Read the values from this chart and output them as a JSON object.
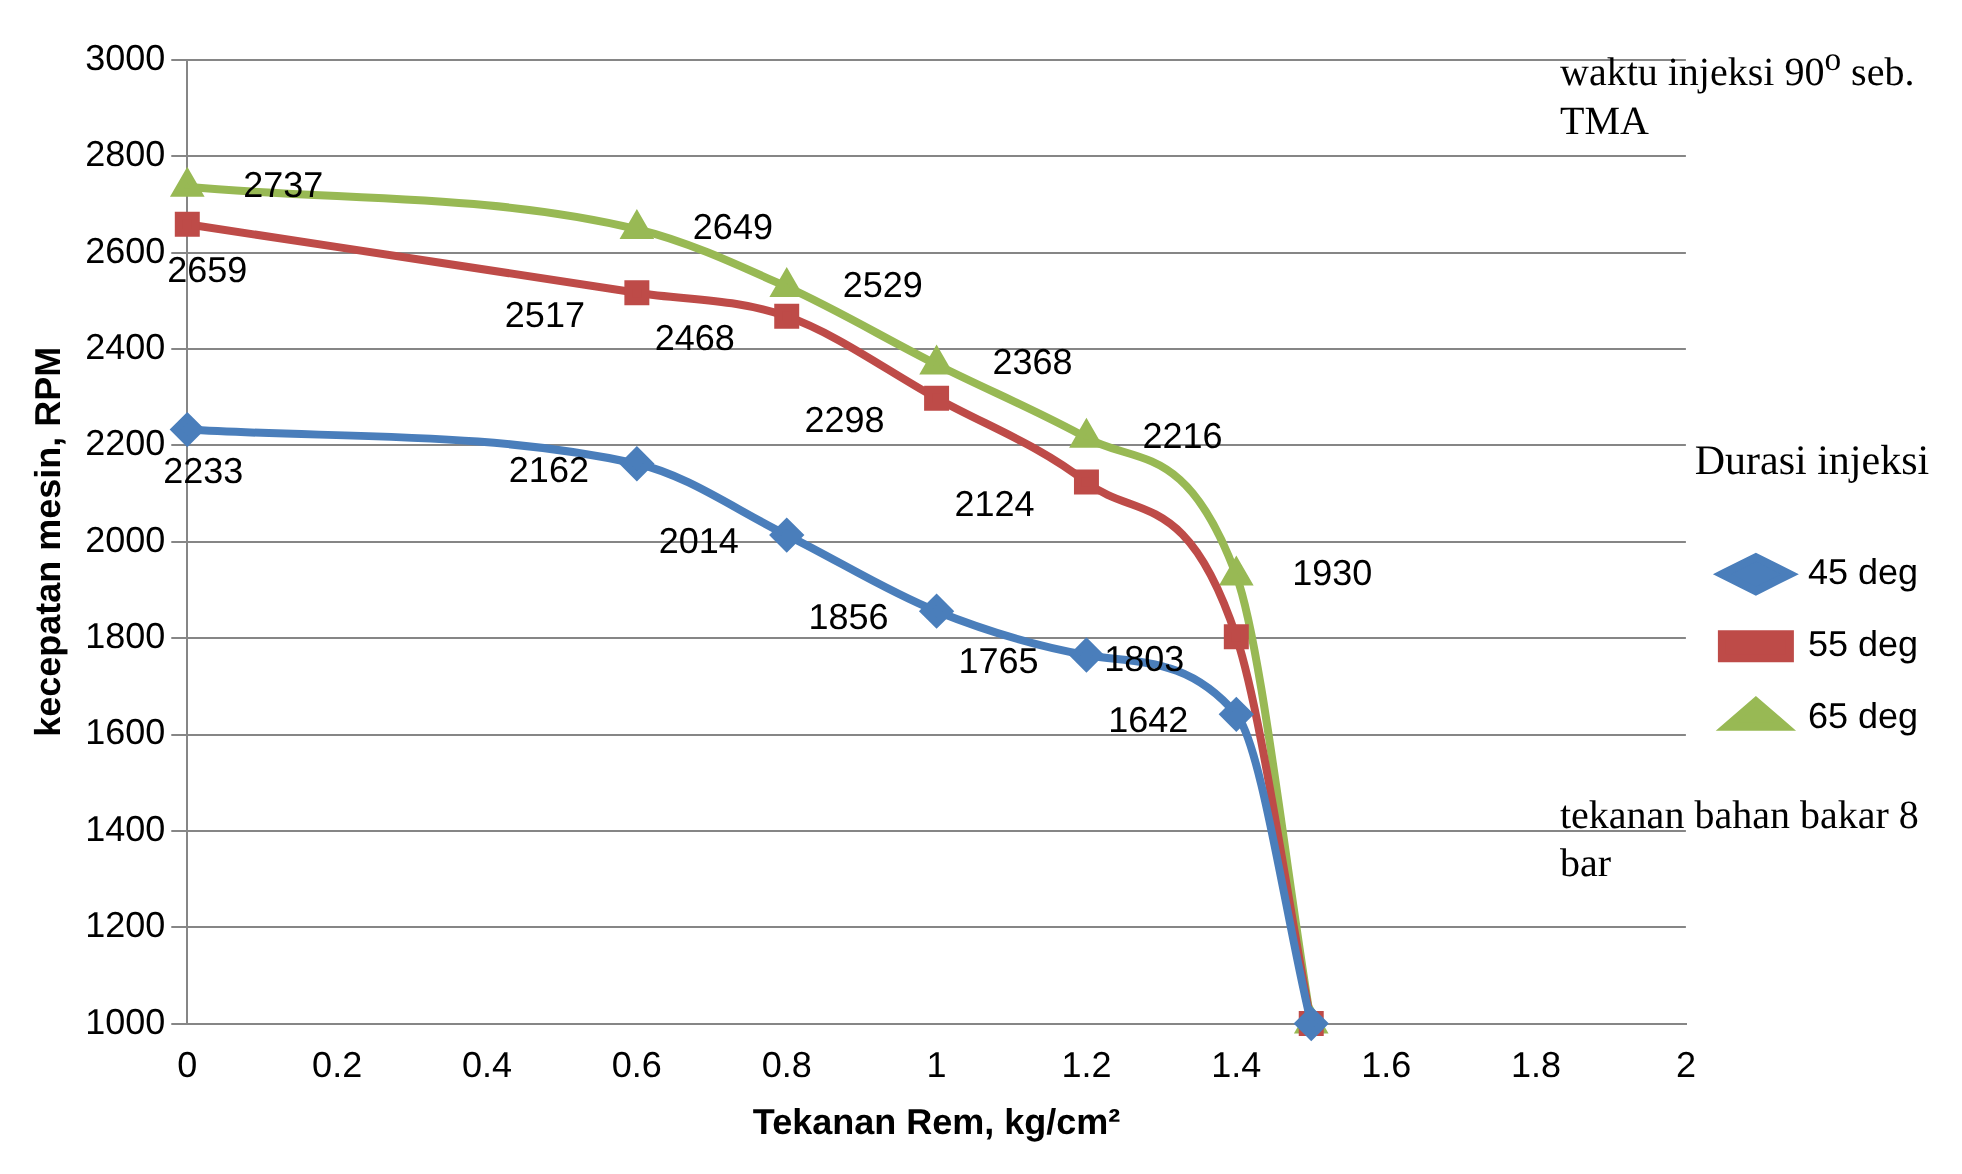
{
  "chart_data": {
    "type": "line",
    "xlabel": "Tekanan Rem, kg/cm²",
    "ylabel": "kecepatan mesin, RPM",
    "legend_title": "Durasi injeksi",
    "legend": "right",
    "grid": "y",
    "annotations": [
      "waktu injeksi 90$^{o}$ seb. TMA",
      "tekanan bahan bakar 8 bar"
    ],
    "xlim": [
      0,
      2
    ],
    "xticks": [
      0,
      0.2,
      0.4,
      0.6,
      0.8,
      1,
      1.2,
      1.4,
      1.6,
      1.8,
      2
    ],
    "ylim": [
      1000,
      3000
    ],
    "yticks": [
      1000,
      1200,
      1400,
      1600,
      1800,
      2000,
      2200,
      2400,
      2600,
      2800,
      3000
    ],
    "x": [
      0,
      0.6,
      0.8,
      1,
      1.2,
      1.4,
      1.5
    ],
    "series": [
      {
        "name": "45 deg",
        "color": "#4a7ebb",
        "marker": "diamond",
        "values": [
          2233,
          2162,
          2014,
          1856,
          1765,
          1642,
          1000
        ],
        "value_labels": [
          "2233",
          "2162",
          "2014",
          "1856",
          "1765",
          "1642",
          null
        ]
      },
      {
        "name": "55 deg",
        "color": "#be4b48",
        "marker": "square",
        "values": [
          2659,
          2517,
          2468,
          2298,
          2124,
          1803,
          1000
        ],
        "value_labels": [
          "2659",
          "2517",
          "2468",
          "2298",
          "2124",
          "1803",
          null
        ]
      },
      {
        "name": "65 deg",
        "color": "#98b954",
        "marker": "triangle",
        "values": [
          2737,
          2649,
          2529,
          2368,
          2216,
          1930,
          1000
        ],
        "value_labels": [
          "2737",
          "2649",
          "2529",
          "2368",
          "2216",
          "1930",
          null
        ]
      }
    ]
  }
}
